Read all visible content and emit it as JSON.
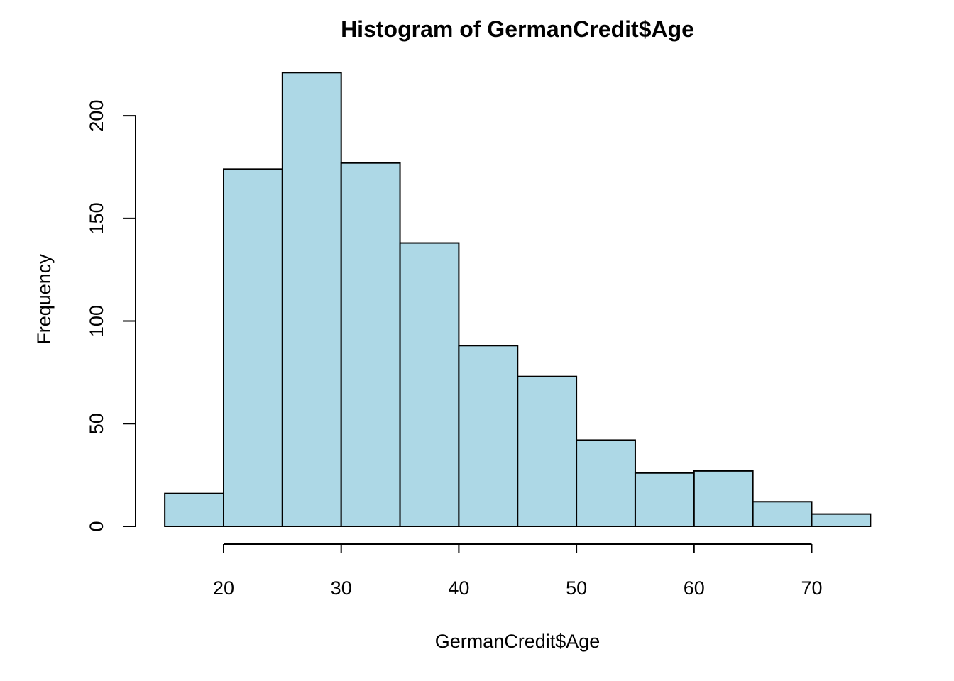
{
  "chart_data": {
    "type": "bar",
    "title": "Histogram of GermanCredit$Age",
    "xlabel": "GermanCredit$Age",
    "ylabel": "Frequency",
    "bins": [
      {
        "from": 15,
        "to": 20,
        "count": 16
      },
      {
        "from": 20,
        "to": 25,
        "count": 174
      },
      {
        "from": 25,
        "to": 30,
        "count": 221
      },
      {
        "from": 30,
        "to": 35,
        "count": 177
      },
      {
        "from": 35,
        "to": 40,
        "count": 138
      },
      {
        "from": 40,
        "to": 45,
        "count": 88
      },
      {
        "from": 45,
        "to": 50,
        "count": 73
      },
      {
        "from": 50,
        "to": 55,
        "count": 42
      },
      {
        "from": 55,
        "to": 60,
        "count": 26
      },
      {
        "from": 60,
        "to": 65,
        "count": 27
      },
      {
        "from": 65,
        "to": 70,
        "count": 12
      },
      {
        "from": 70,
        "to": 75,
        "count": 6
      }
    ],
    "xticks": [
      20,
      30,
      40,
      50,
      60,
      70
    ],
    "yticks": [
      0,
      50,
      100,
      150,
      200
    ],
    "xlim": [
      15,
      75
    ],
    "ylim": [
      0,
      221
    ],
    "bar_color": "#ADD8E6",
    "grid": false
  }
}
